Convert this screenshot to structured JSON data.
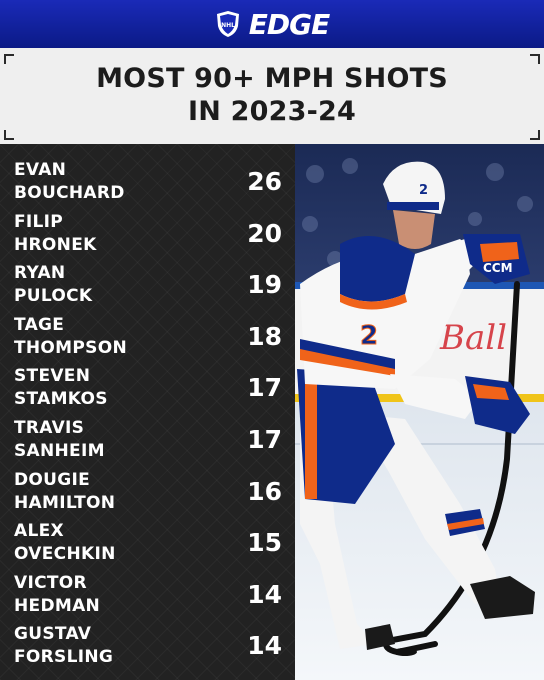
{
  "brand": {
    "wordmark": "EDGE",
    "logo_icon": "nhl-shield-icon"
  },
  "chart_data": {
    "type": "table",
    "title": "MOST 90+ MPH SHOTS\nIN 2023-24",
    "rows": [
      {
        "first": "EVAN",
        "last": "BOUCHARD",
        "value": 26
      },
      {
        "first": "FILIP",
        "last": "HRONEK",
        "value": 20
      },
      {
        "first": "RYAN",
        "last": "PULOCK",
        "value": 19
      },
      {
        "first": "TAGE",
        "last": "THOMPSON",
        "value": 18
      },
      {
        "first": "STEVEN",
        "last": "STAMKOS",
        "value": 17
      },
      {
        "first": "TRAVIS",
        "last": "SANHEIM",
        "value": 17
      },
      {
        "first": "DOUGIE",
        "last": "HAMILTON",
        "value": 16
      },
      {
        "first": "ALEX",
        "last": "OVECHKIN",
        "value": 15
      },
      {
        "first": "VICTOR",
        "last": "HEDMAN",
        "value": 14
      },
      {
        "first": "GUSTAV",
        "last": "FORSLING",
        "value": 14
      }
    ]
  },
  "photo": {
    "jersey_number": "2",
    "helmet_number": "2",
    "glove_brand": "CCM",
    "board_ad": "Ball"
  },
  "colors": {
    "brand_blue": "#1426b0",
    "oilers_orange": "#f0631a",
    "oilers_navy": "#0f2b8a",
    "background": "#222222"
  }
}
